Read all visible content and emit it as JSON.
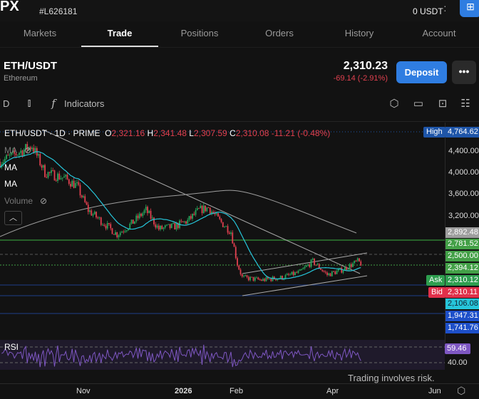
{
  "header": {
    "logo": "PX",
    "account_id": "#L626181",
    "balance": "0 USDT",
    "wallet_icon": "wallet-plus-icon"
  },
  "tabs": [
    {
      "label": "Markets"
    },
    {
      "label": "Trade",
      "active": true
    },
    {
      "label": "Positions"
    },
    {
      "label": "Orders"
    },
    {
      "label": "History"
    },
    {
      "label": "Account"
    }
  ],
  "instrument": {
    "symbol": "ETH/USDT",
    "name": "Ethereum",
    "price": "2,310.23",
    "change": "-69.14 (-2.91%)",
    "deposit_label": "Deposit",
    "more_label": "•••"
  },
  "toolbar": {
    "interval": "D",
    "indicators_label": "Indicators",
    "icons": [
      "candlestick-icon",
      "function-icon",
      "hexagon-settings-icon",
      "calendar-icon",
      "more-box-icon",
      "layout-icon"
    ]
  },
  "legend": {
    "title": "ETH/USDT · 1D · PRIME",
    "o_label": "O",
    "o": "2,321.16",
    "h_label": "H",
    "h": "2,341.48",
    "l_label": "L",
    "l": "2,307.59",
    "c_label": "C",
    "c": "2,310.08",
    "change": "-11.21 (-0.48%)",
    "ma1": "MA",
    "ma2": "MA",
    "ma3": "MA",
    "volume": "Volume"
  },
  "price_axis": {
    "ticks": [
      "4,400.00",
      "4,000.00",
      "3,600.00",
      "3,200.00"
    ],
    "labels": [
      {
        "text": "High",
        "value": "4,764.62",
        "color": "#1e55a8"
      },
      {
        "value": "2,892.48",
        "color": "#9e9e9e"
      },
      {
        "value": "2,781.52",
        "color": "#43a047"
      },
      {
        "value": "2,500.00",
        "color": "#43a047"
      },
      {
        "value": "2,394.12",
        "color": "#43a047"
      },
      {
        "text": "Ask",
        "value": "2,310.12",
        "color": "#2e9e4f"
      },
      {
        "text": "Bid",
        "value": "2,310.11",
        "color": "#e0304a"
      },
      {
        "value": "2,106.08",
        "color": "#26c6da"
      },
      {
        "value": "1,947.31",
        "color": "#1d4fc9"
      },
      {
        "value": "1,741.76",
        "color": "#1d4fc9"
      }
    ]
  },
  "rsi": {
    "label": "RSI",
    "value": "59.46",
    "level": "40.00",
    "color": "#7e57c2"
  },
  "disclaimer": "Trading involves risk.",
  "time_axis": [
    "Nov",
    "2026",
    "Feb",
    "Apr",
    "Jun"
  ],
  "colors": {
    "up": "#26a65b",
    "down": "#e0404f",
    "accent": "#2f7de1",
    "ma_fast": "#26c6da",
    "ma_slow": "#9e9e9e"
  },
  "chart_data": {
    "type": "candlestick",
    "timeframe": "1D",
    "price_keypoints": [
      {
        "date": "2025-09-10",
        "close": 4200
      },
      {
        "date": "2025-09-20",
        "close": 4350
      },
      {
        "date": "2025-09-30",
        "close": 4500
      },
      {
        "date": "2025-10-08",
        "close": 4000
      },
      {
        "date": "2025-10-20",
        "close": 3900
      },
      {
        "date": "2025-10-28",
        "close": 3750
      },
      {
        "date": "2025-11-04",
        "close": 3300
      },
      {
        "date": "2025-11-14",
        "close": 3050
      },
      {
        "date": "2025-11-22",
        "close": 2850
      },
      {
        "date": "2025-12-01",
        "close": 3050
      },
      {
        "date": "2025-12-10",
        "close": 3300
      },
      {
        "date": "2025-12-18",
        "close": 2950
      },
      {
        "date": "2025-12-28",
        "close": 3000
      },
      {
        "date": "2026-01-05",
        "close": 3100
      },
      {
        "date": "2026-01-12",
        "close": 3300
      },
      {
        "date": "2026-01-18",
        "close": 3350
      },
      {
        "date": "2026-01-25",
        "close": 3100
      },
      {
        "date": "2026-02-01",
        "close": 2900
      },
      {
        "date": "2026-02-05",
        "close": 2300
      },
      {
        "date": "2026-02-08",
        "close": 2050
      },
      {
        "date": "2026-02-20",
        "close": 2000
      },
      {
        "date": "2026-03-05",
        "close": 2050
      },
      {
        "date": "2026-03-16",
        "close": 2150
      },
      {
        "date": "2026-03-24",
        "close": 2350
      },
      {
        "date": "2026-04-02",
        "close": 2100
      },
      {
        "date": "2026-04-12",
        "close": 2200
      },
      {
        "date": "2026-04-21",
        "close": 2350
      },
      {
        "date": "2026-04-23",
        "close": 2310
      }
    ],
    "ylim": [
      1700,
      4800
    ]
  }
}
